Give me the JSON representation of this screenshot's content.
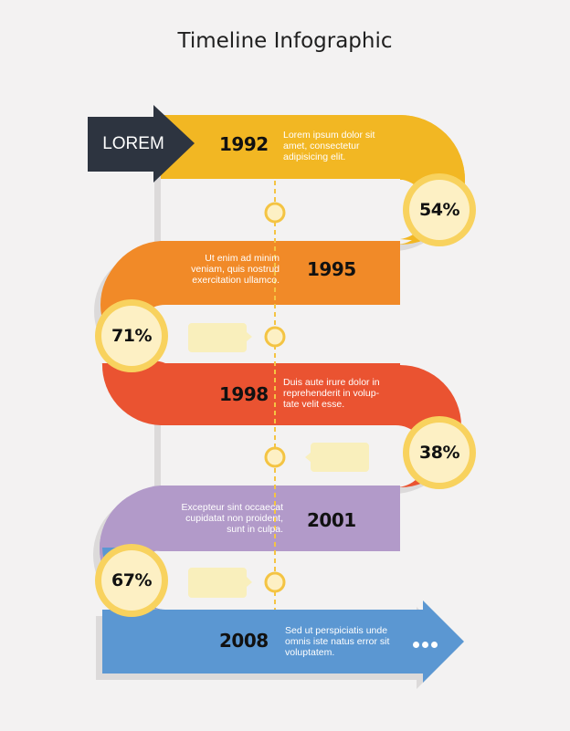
{
  "title": "Timeline Infographic",
  "start_label": "LOREM",
  "colors": {
    "background": "#f3f2f2",
    "band_1": "#f2b723",
    "band_2": "#f18a28",
    "band_3": "#ea5331",
    "band_4": "#b29ac9",
    "band_5": "#5b97d2",
    "start_arrow": "#2d3440",
    "circle_fill": "#fdf0c4",
    "circle_ring": "#f8d25e",
    "connector": "#f4c443",
    "callout": "#f9efbc"
  },
  "milestones": [
    {
      "year": "1992",
      "text": "Lorem ipsum dolor sit\namet, consectetur\nadipisicing elit.",
      "percent": "54%"
    },
    {
      "year": "1995",
      "text": "Ut enim ad minim\nveniam, quis nostrud\nexercitation ullamco.",
      "percent": "71%"
    },
    {
      "year": "1998",
      "text": "Duis aute irure dolor in\nreprehenderit in volup-\ntate velit esse.",
      "percent": "38%"
    },
    {
      "year": "2001",
      "text": "Excepteur sint occaecat\ncupidatat non proident,\nsunt in culpa.",
      "percent": "67%"
    },
    {
      "year": "2008",
      "text": "Sed ut perspiciatis unde\nomnis iste natus error sit\nvoluptatem."
    }
  ],
  "more_icon": "ellipsis-icon"
}
